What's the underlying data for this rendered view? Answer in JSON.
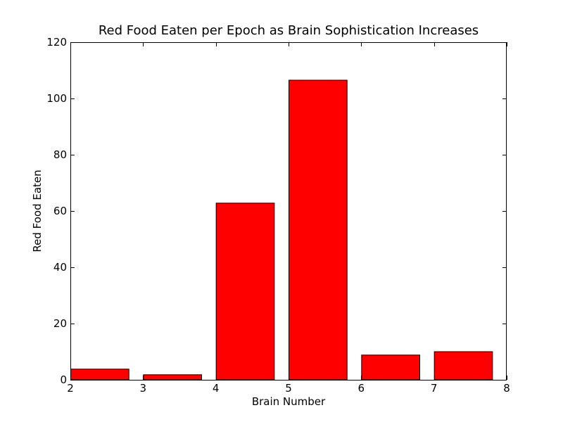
{
  "chart_data": {
    "type": "bar",
    "title": "Red Food Eaten per Epoch as Brain Sophistication Increases",
    "xlabel": "Brain Number",
    "ylabel": "Red Food Eaten",
    "xlim": [
      2,
      8
    ],
    "ylim": [
      0,
      120
    ],
    "x_ticks": [
      2,
      3,
      4,
      5,
      6,
      7,
      8
    ],
    "y_ticks": [
      0,
      20,
      40,
      60,
      80,
      100,
      120
    ],
    "bar_color": "#ff0000",
    "bars": [
      {
        "x": 2,
        "value": 3.8
      },
      {
        "x": 3,
        "value": 1.8
      },
      {
        "x": 4,
        "value": 62.8
      },
      {
        "x": 5,
        "value": 106.5
      },
      {
        "x": 6,
        "value": 8.8
      },
      {
        "x": 7,
        "value": 10.0
      }
    ],
    "grid": false
  }
}
